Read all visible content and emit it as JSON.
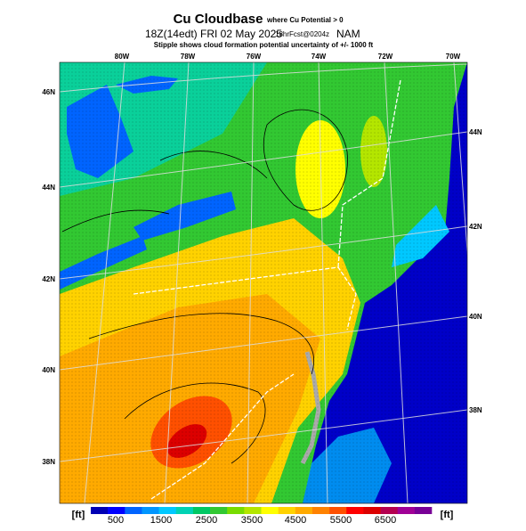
{
  "header": {
    "title": "Cu Cloudbase",
    "title_note": "where Cu Potential > 0",
    "valid_time": "18Z(14edt) FRI 02 May 2025",
    "forecast": "18hrFcst@0204z",
    "model": "NAM",
    "subtitle": "Stipple shows cloud formation potential uncertainty of +/- 1000 ft"
  },
  "map": {
    "lon_labels": [
      "80W",
      "78W",
      "76W",
      "74W",
      "72W",
      "70W"
    ],
    "lat_labels_left": [
      "46N",
      "44N",
      "42N",
      "40N",
      "38N"
    ],
    "lat_labels_right": [
      "44N",
      "42N",
      "40N",
      "38N"
    ]
  },
  "colorbar": {
    "unit_left": "[ft]",
    "unit_right": "[ft]",
    "labels": [
      "500",
      "1500",
      "2500",
      "3500",
      "4500",
      "5500",
      "6500"
    ],
    "colors": [
      "#0000b4",
      "#0000ff",
      "#0064ff",
      "#0096ff",
      "#00c8ff",
      "#00d2b4",
      "#00c864",
      "#32c832",
      "#78dc00",
      "#b4e600",
      "#ffff00",
      "#ffd200",
      "#ffaa00",
      "#ff8200",
      "#ff5000",
      "#ff0000",
      "#dc0000",
      "#b40050",
      "#a00096",
      "#780096"
    ]
  }
}
